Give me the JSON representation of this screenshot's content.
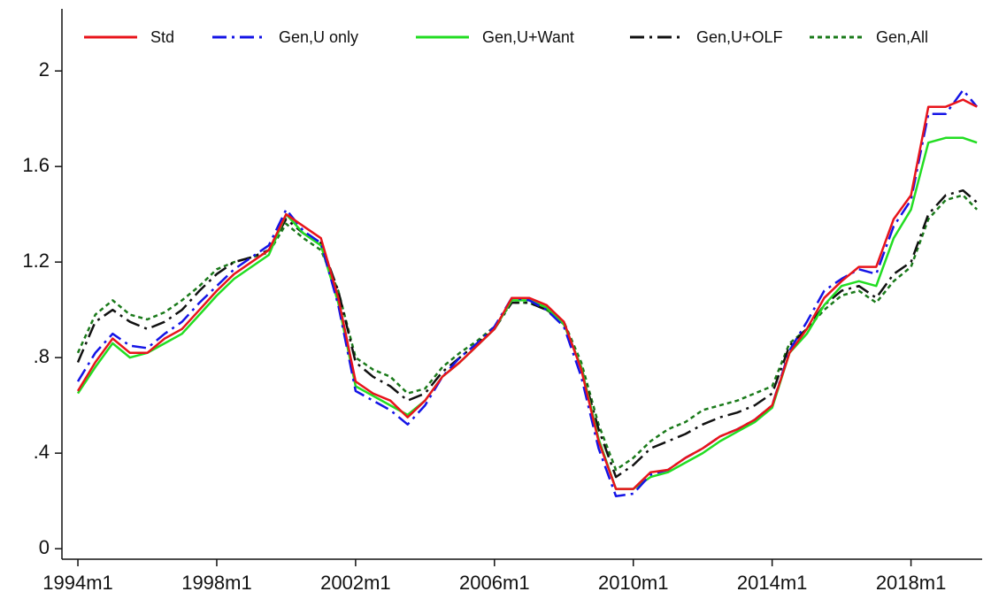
{
  "chart_data": {
    "type": "line",
    "x": [
      1994,
      1994.5,
      1995,
      1995.5,
      1996,
      1996.5,
      1997,
      1997.5,
      1998,
      1998.5,
      1999,
      1999.5,
      2000,
      2000.5,
      2001,
      2001.5,
      2002,
      2002.5,
      2003,
      2003.5,
      2004,
      2004.5,
      2005,
      2005.5,
      2006,
      2006.5,
      2007,
      2007.5,
      2008,
      2008.5,
      2009,
      2009.5,
      2010,
      2010.5,
      2011,
      2011.5,
      2012,
      2012.5,
      2013,
      2013.5,
      2014,
      2014.5,
      2015,
      2015.5,
      2016,
      2016.5,
      2017,
      2017.5,
      2018,
      2018.5,
      2019,
      2019.5,
      2019.9
    ],
    "series": [
      {
        "name": "Std",
        "color": "#e8141b",
        "style": "solid",
        "values": [
          0.66,
          0.78,
          0.88,
          0.82,
          0.82,
          0.88,
          0.92,
          1.0,
          1.08,
          1.15,
          1.2,
          1.25,
          1.4,
          1.35,
          1.3,
          1.05,
          0.7,
          0.65,
          0.62,
          0.55,
          0.62,
          0.72,
          0.78,
          0.85,
          0.92,
          1.05,
          1.05,
          1.02,
          0.95,
          0.75,
          0.45,
          0.25,
          0.25,
          0.32,
          0.33,
          0.38,
          0.42,
          0.47,
          0.5,
          0.54,
          0.6,
          0.82,
          0.92,
          1.05,
          1.12,
          1.18,
          1.18,
          1.38,
          1.48,
          1.85,
          1.85,
          1.88,
          1.85
        ]
      },
      {
        "name": "Gen,U only",
        "color": "#1414e6",
        "style": "dashdot",
        "values": [
          0.7,
          0.82,
          0.9,
          0.85,
          0.84,
          0.9,
          0.95,
          1.03,
          1.1,
          1.17,
          1.22,
          1.27,
          1.42,
          1.33,
          1.28,
          1.02,
          0.66,
          0.62,
          0.58,
          0.52,
          0.6,
          0.72,
          0.8,
          0.86,
          0.93,
          1.05,
          1.04,
          1.0,
          0.93,
          0.72,
          0.42,
          0.22,
          0.23,
          0.31,
          0.33,
          0.38,
          0.42,
          0.47,
          0.5,
          0.54,
          0.6,
          0.83,
          0.95,
          1.08,
          1.13,
          1.17,
          1.15,
          1.35,
          1.46,
          1.82,
          1.82,
          1.92,
          1.85
        ]
      },
      {
        "name": "Gen,U+Want",
        "color": "#22dd22",
        "style": "solid",
        "values": [
          0.65,
          0.76,
          0.86,
          0.8,
          0.82,
          0.86,
          0.9,
          0.98,
          1.06,
          1.13,
          1.18,
          1.23,
          1.4,
          1.32,
          1.27,
          1.03,
          0.68,
          0.64,
          0.6,
          0.56,
          0.62,
          0.72,
          0.78,
          0.85,
          0.92,
          1.04,
          1.04,
          1.01,
          0.94,
          0.76,
          0.46,
          0.25,
          0.25,
          0.3,
          0.32,
          0.36,
          0.4,
          0.45,
          0.49,
          0.53,
          0.59,
          0.82,
          0.9,
          1.02,
          1.1,
          1.12,
          1.1,
          1.3,
          1.42,
          1.7,
          1.72,
          1.72,
          1.7
        ]
      },
      {
        "name": "Gen,U+OLF",
        "color": "#111111",
        "style": "dashdot",
        "values": [
          0.78,
          0.95,
          1.0,
          0.95,
          0.92,
          0.95,
          1.0,
          1.08,
          1.15,
          1.2,
          1.22,
          1.25,
          1.38,
          1.32,
          1.28,
          1.08,
          0.78,
          0.72,
          0.68,
          0.62,
          0.65,
          0.74,
          0.8,
          0.86,
          0.92,
          1.03,
          1.03,
          1.0,
          0.94,
          0.76,
          0.5,
          0.3,
          0.35,
          0.42,
          0.45,
          0.48,
          0.52,
          0.55,
          0.57,
          0.6,
          0.65,
          0.85,
          0.92,
          1.02,
          1.08,
          1.1,
          1.05,
          1.15,
          1.2,
          1.4,
          1.48,
          1.5,
          1.45
        ]
      },
      {
        "name": "Gen,All",
        "color": "#1a7a1a",
        "style": "dot",
        "values": [
          0.82,
          0.98,
          1.04,
          0.98,
          0.96,
          0.99,
          1.04,
          1.1,
          1.17,
          1.2,
          1.22,
          1.24,
          1.36,
          1.3,
          1.25,
          1.08,
          0.8,
          0.75,
          0.72,
          0.65,
          0.67,
          0.76,
          0.82,
          0.87,
          0.93,
          1.03,
          1.03,
          1.0,
          0.95,
          0.78,
          0.52,
          0.33,
          0.38,
          0.45,
          0.5,
          0.53,
          0.58,
          0.6,
          0.62,
          0.65,
          0.68,
          0.86,
          0.92,
          1.0,
          1.06,
          1.08,
          1.03,
          1.12,
          1.18,
          1.38,
          1.46,
          1.48,
          1.42
        ]
      }
    ],
    "xlim": [
      1993.54,
      2020.05
    ],
    "ylim": [
      -0.044,
      2.26
    ],
    "xticks": [
      {
        "value": 1994,
        "label": "1994m1"
      },
      {
        "value": 1998,
        "label": "1998m1"
      },
      {
        "value": 2002,
        "label": "2002m1"
      },
      {
        "value": 2006,
        "label": "2006m1"
      },
      {
        "value": 2010,
        "label": "2010m1"
      },
      {
        "value": 2014,
        "label": "2014m1"
      },
      {
        "value": 2018,
        "label": "2018m1"
      }
    ],
    "yticks": [
      0,
      {
        "value": 0.4,
        "label": ".4"
      },
      {
        "value": 0.8,
        "label": ".8"
      },
      1.2,
      1.6,
      2
    ],
    "grid": false,
    "legend": "top"
  }
}
